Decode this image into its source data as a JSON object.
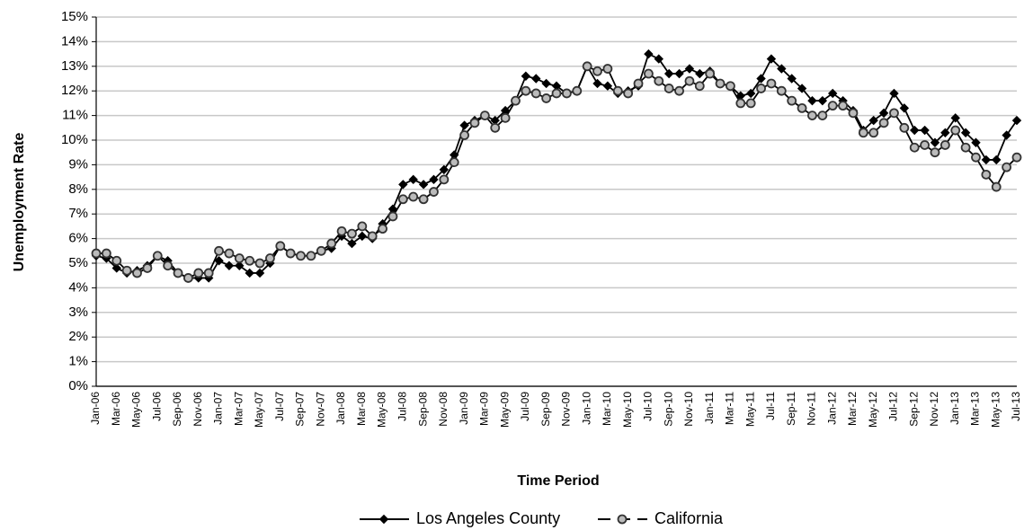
{
  "chart_data": {
    "type": "line",
    "y_label": "Unemployment Rate",
    "x_label": "Time Period",
    "categories": [
      "Jan-06",
      null,
      "Mar-06",
      null,
      "May-06",
      null,
      "Jul-06",
      null,
      "Sep-06",
      null,
      "Nov-06",
      null,
      "Jan-07",
      null,
      "Mar-07",
      null,
      "May-07",
      null,
      "Jul-07",
      null,
      "Sep-07",
      null,
      "Nov-07",
      null,
      "Jan-08",
      null,
      "Mar-08",
      null,
      "May-08",
      null,
      "Jul-08",
      null,
      "Sep-08",
      null,
      "Nov-08",
      null,
      "Jan-09",
      null,
      "Mar-09",
      null,
      "May-09",
      null,
      "Jul-09",
      null,
      "Sep-09",
      null,
      "Nov-09",
      null,
      "Jan-10",
      null,
      "Mar-10",
      null,
      "May-10",
      null,
      "Jul-10",
      null,
      "Sep-10",
      null,
      "Nov-10",
      null,
      "Jan-11",
      null,
      "Mar-11",
      null,
      "May-11",
      null,
      "Jul-11",
      null,
      "Sep-11",
      null,
      "Nov-11",
      null,
      "Jan-12",
      null,
      "Mar-12",
      null,
      "May-12",
      null,
      "Jul-12",
      null,
      "Sep-12",
      null,
      "Nov-12",
      null,
      "Jan-13",
      null,
      "Mar-13",
      null,
      "May-13",
      null,
      "Jul-13"
    ],
    "series": [
      {
        "name": "Los Angeles County",
        "color": "#000000",
        "marker": "diamond",
        "dashed_legend": false,
        "values": [
          5.3,
          5.2,
          4.8,
          4.6,
          4.7,
          4.9,
          5.3,
          5.1,
          4.6,
          4.4,
          4.4,
          4.4,
          5.1,
          4.9,
          4.9,
          4.6,
          4.6,
          5.0,
          5.7,
          5.4,
          5.3,
          5.3,
          5.5,
          5.6,
          6.1,
          5.8,
          6.1,
          6.0,
          6.6,
          7.2,
          8.2,
          8.4,
          8.2,
          8.4,
          8.8,
          9.4,
          10.6,
          10.8,
          11.0,
          10.8,
          11.2,
          11.6,
          12.6,
          12.5,
          12.3,
          12.2,
          11.9,
          12.0,
          13.0,
          12.3,
          12.2,
          11.9,
          12.0,
          12.2,
          13.5,
          13.3,
          12.7,
          12.7,
          12.9,
          12.7,
          12.8,
          12.3,
          12.2,
          11.8,
          11.9,
          12.5,
          13.3,
          12.9,
          12.5,
          12.1,
          11.6,
          11.6,
          11.9,
          11.6,
          11.2,
          10.4,
          10.8,
          11.1,
          11.9,
          11.3,
          10.4,
          10.4,
          9.9,
          10.3,
          10.9,
          10.3,
          9.9,
          9.2,
          9.2,
          10.2,
          10.8
        ]
      },
      {
        "name": "California",
        "color": "#bbbbbb",
        "marker": "circle",
        "dashed_legend": true,
        "values": [
          5.4,
          5.4,
          5.1,
          4.7,
          4.6,
          4.8,
          5.3,
          4.9,
          4.6,
          4.4,
          4.6,
          4.6,
          5.5,
          5.4,
          5.2,
          5.1,
          5.0,
          5.2,
          5.7,
          5.4,
          5.3,
          5.3,
          5.5,
          5.8,
          6.3,
          6.2,
          6.5,
          6.1,
          6.4,
          6.9,
          7.6,
          7.7,
          7.6,
          7.9,
          8.4,
          9.1,
          10.2,
          10.7,
          11.0,
          10.5,
          10.9,
          11.6,
          12.0,
          11.9,
          11.7,
          11.9,
          11.9,
          12.0,
          13.0,
          12.8,
          12.9,
          12.0,
          11.9,
          12.3,
          12.7,
          12.4,
          12.1,
          12.0,
          12.4,
          12.2,
          12.7,
          12.3,
          12.2,
          11.5,
          11.5,
          12.1,
          12.3,
          12.0,
          11.6,
          11.3,
          11.0,
          11.0,
          11.4,
          11.4,
          11.1,
          10.3,
          10.3,
          10.7,
          11.1,
          10.5,
          9.7,
          9.8,
          9.5,
          9.8,
          10.4,
          9.7,
          9.3,
          8.6,
          8.1,
          8.9,
          9.3
        ]
      }
    ],
    "ylim": [
      0,
      15
    ],
    "yticks": [
      {
        "value": 0,
        "label": "0%"
      },
      {
        "value": 1,
        "label": "1%"
      },
      {
        "value": 2,
        "label": "2%"
      },
      {
        "value": 3,
        "label": "3%"
      },
      {
        "value": 4,
        "label": "4%"
      },
      {
        "value": 5,
        "label": "5%"
      },
      {
        "value": 6,
        "label": "6%"
      },
      {
        "value": 7,
        "label": "7%"
      },
      {
        "value": 8,
        "label": "8%"
      },
      {
        "value": 9,
        "label": "9%"
      },
      {
        "value": 10,
        "label": "10%"
      },
      {
        "value": 11,
        "label": "11%"
      },
      {
        "value": 12,
        "label": "12%"
      },
      {
        "value": 13,
        "label": "13%"
      },
      {
        "value": 14,
        "label": "14%"
      },
      {
        "value": 15,
        "label": "15%"
      }
    ],
    "grid": true,
    "legend": "bottom"
  }
}
